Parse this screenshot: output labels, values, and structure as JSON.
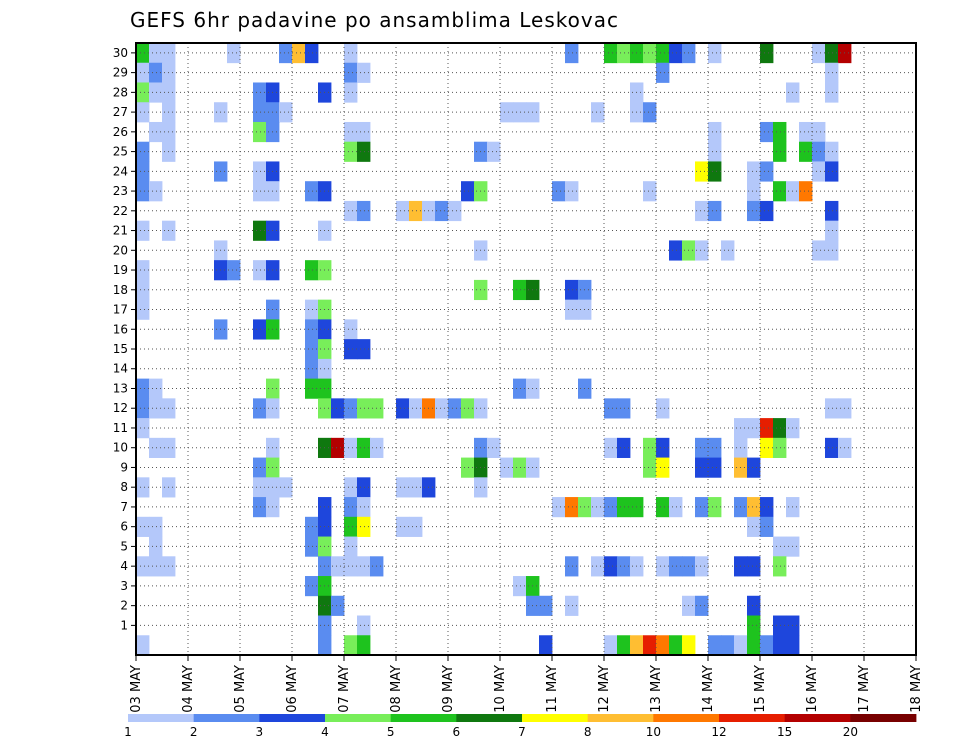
{
  "chart_data": {
    "type": "heatmap",
    "title": "GEFS 6hr padavine po ansamblima Leskovac",
    "xlabel": "",
    "ylabel": "",
    "x_tick_labels": [
      "03 MAY",
      "04 MAY",
      "05 MAY",
      "06 MAY",
      "07 MAY",
      "08 MAY",
      "09 MAY",
      "10 MAY",
      "11 MAY",
      "12 MAY",
      "13 MAY",
      "14 MAY",
      "15 MAY",
      "16 MAY",
      "17 MAY",
      "18 MAY"
    ],
    "y_tick_labels": [
      "1",
      "2",
      "3",
      "4",
      "5",
      "6",
      "7",
      "8",
      "9",
      "10",
      "11",
      "12",
      "13",
      "14",
      "15",
      "16",
      "17",
      "18",
      "19",
      "20",
      "21",
      "22",
      "23",
      "24",
      "25",
      "26",
      "27",
      "28",
      "29",
      "30"
    ],
    "x_range": [
      0,
      15
    ],
    "y_range": [
      0,
      30
    ],
    "steps_per_day": 4,
    "grid": true,
    "colorbar": {
      "placement": "bottom",
      "labels": [
        "1",
        "2",
        "3",
        "4",
        "5",
        "6",
        "7",
        "8",
        "10",
        "12",
        "15",
        "20"
      ],
      "colors": [
        "#b4c8fa",
        "#5a8cf0",
        "#1e46dc",
        "#78ee5a",
        "#1ec31e",
        "#0f780f",
        "#ffff00",
        "#ffbe32",
        "#ff7800",
        "#e61e00",
        "#b40000",
        "#780000"
      ]
    },
    "cells": [
      [
        0,
        30,
        5
      ],
      [
        1,
        30,
        1
      ],
      [
        2,
        30,
        1
      ],
      [
        7,
        30,
        1
      ],
      [
        11,
        30,
        2
      ],
      [
        12,
        30,
        8
      ],
      [
        13,
        30,
        3
      ],
      [
        16,
        30,
        1
      ],
      [
        33,
        30,
        2
      ],
      [
        36,
        30,
        5
      ],
      [
        37,
        30,
        4
      ],
      [
        38,
        30,
        5
      ],
      [
        39,
        30,
        4
      ],
      [
        40,
        30,
        5
      ],
      [
        41,
        30,
        3
      ],
      [
        42,
        30,
        2
      ],
      [
        44,
        30,
        1
      ],
      [
        48,
        30,
        6
      ],
      [
        52,
        30,
        1
      ],
      [
        53,
        30,
        6
      ],
      [
        54,
        30,
        11
      ],
      [
        0,
        29,
        1
      ],
      [
        1,
        29,
        2
      ],
      [
        2,
        29,
        1
      ],
      [
        16,
        29,
        2
      ],
      [
        17,
        29,
        1
      ],
      [
        40,
        29,
        2
      ],
      [
        53,
        29,
        1
      ],
      [
        0,
        28,
        4
      ],
      [
        1,
        28,
        1
      ],
      [
        2,
        28,
        1
      ],
      [
        9,
        28,
        2
      ],
      [
        10,
        28,
        3
      ],
      [
        14,
        28,
        3
      ],
      [
        16,
        28,
        1
      ],
      [
        38,
        28,
        1
      ],
      [
        50,
        28,
        1
      ],
      [
        53,
        28,
        1
      ],
      [
        0,
        27,
        1
      ],
      [
        2,
        27,
        1
      ],
      [
        6,
        27,
        1
      ],
      [
        9,
        27,
        2
      ],
      [
        10,
        27,
        2
      ],
      [
        11,
        27,
        1
      ],
      [
        28,
        27,
        1
      ],
      [
        29,
        27,
        1
      ],
      [
        30,
        27,
        1
      ],
      [
        35,
        27,
        1
      ],
      [
        38,
        27,
        1
      ],
      [
        39,
        27,
        2
      ],
      [
        1,
        26,
        1
      ],
      [
        2,
        26,
        1
      ],
      [
        9,
        26,
        4
      ],
      [
        10,
        26,
        2
      ],
      [
        16,
        26,
        1
      ],
      [
        17,
        26,
        1
      ],
      [
        44,
        26,
        1
      ],
      [
        48,
        26,
        2
      ],
      [
        49,
        26,
        5
      ],
      [
        51,
        26,
        1
      ],
      [
        52,
        26,
        1
      ],
      [
        0,
        25,
        2
      ],
      [
        2,
        25,
        1
      ],
      [
        16,
        25,
        4
      ],
      [
        17,
        25,
        6
      ],
      [
        26,
        25,
        2
      ],
      [
        27,
        25,
        1
      ],
      [
        44,
        25,
        1
      ],
      [
        49,
        25,
        5
      ],
      [
        51,
        25,
        5
      ],
      [
        52,
        25,
        2
      ],
      [
        53,
        25,
        1
      ],
      [
        0,
        24,
        2
      ],
      [
        6,
        24,
        2
      ],
      [
        9,
        24,
        1
      ],
      [
        10,
        24,
        3
      ],
      [
        43,
        24,
        7
      ],
      [
        44,
        24,
        6
      ],
      [
        47,
        24,
        1
      ],
      [
        48,
        24,
        2
      ],
      [
        52,
        24,
        1
      ],
      [
        53,
        24,
        3
      ],
      [
        0,
        23,
        2
      ],
      [
        1,
        23,
        1
      ],
      [
        9,
        23,
        1
      ],
      [
        10,
        23,
        1
      ],
      [
        13,
        23,
        2
      ],
      [
        14,
        23,
        3
      ],
      [
        25,
        23,
        3
      ],
      [
        26,
        23,
        4
      ],
      [
        32,
        23,
        2
      ],
      [
        33,
        23,
        1
      ],
      [
        39,
        23,
        1
      ],
      [
        47,
        23,
        1
      ],
      [
        49,
        23,
        5
      ],
      [
        50,
        23,
        1
      ],
      [
        51,
        23,
        9
      ],
      [
        16,
        22,
        1
      ],
      [
        17,
        22,
        2
      ],
      [
        20,
        22,
        1
      ],
      [
        21,
        22,
        8
      ],
      [
        22,
        22,
        1
      ],
      [
        23,
        22,
        2
      ],
      [
        24,
        22,
        1
      ],
      [
        43,
        22,
        1
      ],
      [
        44,
        22,
        2
      ],
      [
        47,
        22,
        2
      ],
      [
        48,
        22,
        3
      ],
      [
        53,
        22,
        3
      ],
      [
        0,
        21,
        1
      ],
      [
        2,
        21,
        1
      ],
      [
        9,
        21,
        6
      ],
      [
        10,
        21,
        3
      ],
      [
        14,
        21,
        1
      ],
      [
        53,
        21,
        1
      ],
      [
        6,
        20,
        1
      ],
      [
        26,
        20,
        1
      ],
      [
        41,
        20,
        3
      ],
      [
        42,
        20,
        4
      ],
      [
        43,
        20,
        1
      ],
      [
        45,
        20,
        1
      ],
      [
        52,
        20,
        1
      ],
      [
        53,
        20,
        1
      ],
      [
        0,
        19,
        1
      ],
      [
        6,
        19,
        3
      ],
      [
        7,
        19,
        2
      ],
      [
        9,
        19,
        1
      ],
      [
        10,
        19,
        3
      ],
      [
        13,
        19,
        5
      ],
      [
        14,
        19,
        4
      ],
      [
        0,
        18,
        1
      ],
      [
        26,
        18,
        4
      ],
      [
        29,
        18,
        5
      ],
      [
        30,
        18,
        6
      ],
      [
        33,
        18,
        3
      ],
      [
        34,
        18,
        2
      ],
      [
        0,
        17,
        1
      ],
      [
        10,
        17,
        2
      ],
      [
        13,
        17,
        1
      ],
      [
        14,
        17,
        4
      ],
      [
        33,
        17,
        1
      ],
      [
        34,
        17,
        1
      ],
      [
        6,
        16,
        2
      ],
      [
        9,
        16,
        3
      ],
      [
        10,
        16,
        5
      ],
      [
        13,
        16,
        2
      ],
      [
        14,
        16,
        3
      ],
      [
        16,
        16,
        1
      ],
      [
        13,
        15,
        2
      ],
      [
        14,
        15,
        4
      ],
      [
        16,
        15,
        3
      ],
      [
        17,
        15,
        3
      ],
      [
        13,
        14,
        2
      ],
      [
        14,
        14,
        1
      ],
      [
        0,
        13,
        2
      ],
      [
        1,
        13,
        1
      ],
      [
        10,
        13,
        4
      ],
      [
        13,
        13,
        5
      ],
      [
        14,
        13,
        5
      ],
      [
        29,
        13,
        2
      ],
      [
        30,
        13,
        1
      ],
      [
        34,
        13,
        2
      ],
      [
        0,
        12,
        2
      ],
      [
        1,
        12,
        1
      ],
      [
        2,
        12,
        1
      ],
      [
        9,
        12,
        2
      ],
      [
        10,
        12,
        1
      ],
      [
        14,
        12,
        4
      ],
      [
        15,
        12,
        3
      ],
      [
        16,
        12,
        2
      ],
      [
        17,
        12,
        4
      ],
      [
        18,
        12,
        4
      ],
      [
        20,
        12,
        3
      ],
      [
        21,
        12,
        1
      ],
      [
        22,
        12,
        9
      ],
      [
        23,
        12,
        1
      ],
      [
        24,
        12,
        2
      ],
      [
        25,
        12,
        4
      ],
      [
        26,
        12,
        1
      ],
      [
        36,
        12,
        2
      ],
      [
        37,
        12,
        2
      ],
      [
        40,
        12,
        1
      ],
      [
        53,
        12,
        1
      ],
      [
        54,
        12,
        1
      ],
      [
        0,
        11,
        1
      ],
      [
        46,
        11,
        1
      ],
      [
        47,
        11,
        1
      ],
      [
        48,
        11,
        10
      ],
      [
        49,
        11,
        6
      ],
      [
        50,
        11,
        1
      ],
      [
        1,
        10,
        1
      ],
      [
        2,
        10,
        1
      ],
      [
        10,
        10,
        1
      ],
      [
        14,
        10,
        6
      ],
      [
        15,
        10,
        11
      ],
      [
        16,
        10,
        1
      ],
      [
        17,
        10,
        5
      ],
      [
        18,
        10,
        1
      ],
      [
        26,
        10,
        2
      ],
      [
        27,
        10,
        1
      ],
      [
        36,
        10,
        1
      ],
      [
        37,
        10,
        3
      ],
      [
        39,
        10,
        4
      ],
      [
        40,
        10,
        3
      ],
      [
        43,
        10,
        2
      ],
      [
        44,
        10,
        2
      ],
      [
        46,
        10,
        1
      ],
      [
        48,
        10,
        7
      ],
      [
        49,
        10,
        4
      ],
      [
        53,
        10,
        3
      ],
      [
        54,
        10,
        1
      ],
      [
        9,
        9,
        2
      ],
      [
        10,
        9,
        4
      ],
      [
        25,
        9,
        4
      ],
      [
        26,
        9,
        6
      ],
      [
        28,
        9,
        1
      ],
      [
        29,
        9,
        4
      ],
      [
        30,
        9,
        1
      ],
      [
        39,
        9,
        4
      ],
      [
        40,
        9,
        7
      ],
      [
        43,
        9,
        3
      ],
      [
        44,
        9,
        3
      ],
      [
        46,
        9,
        8
      ],
      [
        47,
        9,
        3
      ],
      [
        0,
        8,
        1
      ],
      [
        2,
        8,
        1
      ],
      [
        9,
        8,
        1
      ],
      [
        10,
        8,
        1
      ],
      [
        11,
        8,
        1
      ],
      [
        16,
        8,
        1
      ],
      [
        17,
        8,
        3
      ],
      [
        20,
        8,
        1
      ],
      [
        21,
        8,
        1
      ],
      [
        22,
        8,
        3
      ],
      [
        26,
        8,
        1
      ],
      [
        9,
        7,
        2
      ],
      [
        10,
        7,
        1
      ],
      [
        14,
        7,
        3
      ],
      [
        16,
        7,
        2
      ],
      [
        17,
        7,
        1
      ],
      [
        32,
        7,
        1
      ],
      [
        33,
        7,
        9
      ],
      [
        34,
        7,
        4
      ],
      [
        35,
        7,
        1
      ],
      [
        36,
        7,
        2
      ],
      [
        37,
        7,
        5
      ],
      [
        38,
        7,
        5
      ],
      [
        40,
        7,
        5
      ],
      [
        41,
        7,
        1
      ],
      [
        43,
        7,
        2
      ],
      [
        44,
        7,
        4
      ],
      [
        46,
        7,
        2
      ],
      [
        47,
        7,
        8
      ],
      [
        48,
        7,
        3
      ],
      [
        50,
        7,
        1
      ],
      [
        0,
        6,
        1
      ],
      [
        1,
        6,
        1
      ],
      [
        13,
        6,
        2
      ],
      [
        14,
        6,
        3
      ],
      [
        16,
        6,
        5
      ],
      [
        17,
        6,
        7
      ],
      [
        20,
        6,
        1
      ],
      [
        21,
        6,
        1
      ],
      [
        47,
        6,
        1
      ],
      [
        48,
        6,
        2
      ],
      [
        1,
        5,
        1
      ],
      [
        13,
        5,
        2
      ],
      [
        14,
        5,
        4
      ],
      [
        16,
        5,
        1
      ],
      [
        49,
        5,
        1
      ],
      [
        50,
        5,
        1
      ],
      [
        0,
        4,
        1
      ],
      [
        1,
        4,
        1
      ],
      [
        2,
        4,
        1
      ],
      [
        14,
        4,
        2
      ],
      [
        15,
        4,
        1
      ],
      [
        16,
        4,
        1
      ],
      [
        17,
        4,
        1
      ],
      [
        18,
        4,
        2
      ],
      [
        33,
        4,
        2
      ],
      [
        35,
        4,
        1
      ],
      [
        36,
        4,
        3
      ],
      [
        37,
        4,
        2
      ],
      [
        38,
        4,
        1
      ],
      [
        40,
        4,
        1
      ],
      [
        41,
        4,
        2
      ],
      [
        42,
        4,
        2
      ],
      [
        43,
        4,
        1
      ],
      [
        46,
        4,
        3
      ],
      [
        47,
        4,
        3
      ],
      [
        49,
        4,
        4
      ],
      [
        13,
        3,
        2
      ],
      [
        14,
        3,
        5
      ],
      [
        29,
        3,
        1
      ],
      [
        30,
        3,
        5
      ],
      [
        14,
        2,
        6
      ],
      [
        15,
        2,
        2
      ],
      [
        30,
        2,
        2
      ],
      [
        31,
        2,
        2
      ],
      [
        33,
        2,
        1
      ],
      [
        42,
        2,
        1
      ],
      [
        43,
        2,
        2
      ],
      [
        47,
        2,
        3
      ],
      [
        14,
        1,
        2
      ],
      [
        17,
        1,
        1
      ],
      [
        47,
        1,
        5
      ],
      [
        49,
        1,
        3
      ],
      [
        50,
        1,
        3
      ],
      [
        0,
        0,
        1
      ],
      [
        14,
        0,
        2
      ],
      [
        16,
        0,
        4
      ],
      [
        17,
        0,
        5
      ],
      [
        31,
        0,
        3
      ],
      [
        36,
        0,
        1
      ],
      [
        37,
        0,
        5
      ],
      [
        38,
        0,
        8
      ],
      [
        39,
        0,
        10
      ],
      [
        40,
        0,
        9
      ],
      [
        41,
        0,
        5
      ],
      [
        42,
        0,
        7
      ],
      [
        44,
        0,
        2
      ],
      [
        45,
        0,
        2
      ],
      [
        46,
        0,
        1
      ],
      [
        47,
        0,
        5
      ],
      [
        48,
        0,
        2
      ],
      [
        49,
        0,
        3
      ],
      [
        50,
        0,
        3
      ]
    ]
  }
}
